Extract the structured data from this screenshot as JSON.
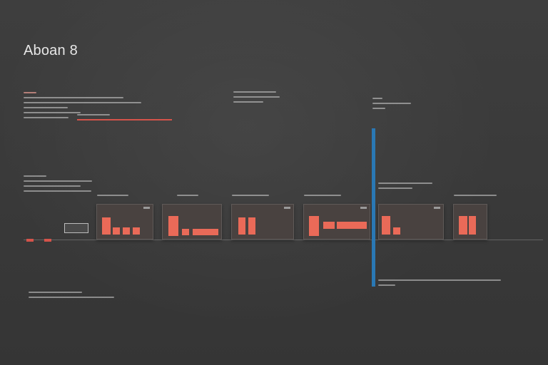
{
  "window": {
    "title": "Aboan 8",
    "center_label": "",
    "right_label": "",
    "footer_top": "",
    "footer_bottom": ""
  },
  "colors": {
    "background": "#3b3b3b",
    "accent": "#d5534a",
    "bar": "#ea6a58",
    "panel": "#494240",
    "timeline": "#2a78b4"
  },
  "icons": {
    "expand": "chevron-down-icon"
  }
}
